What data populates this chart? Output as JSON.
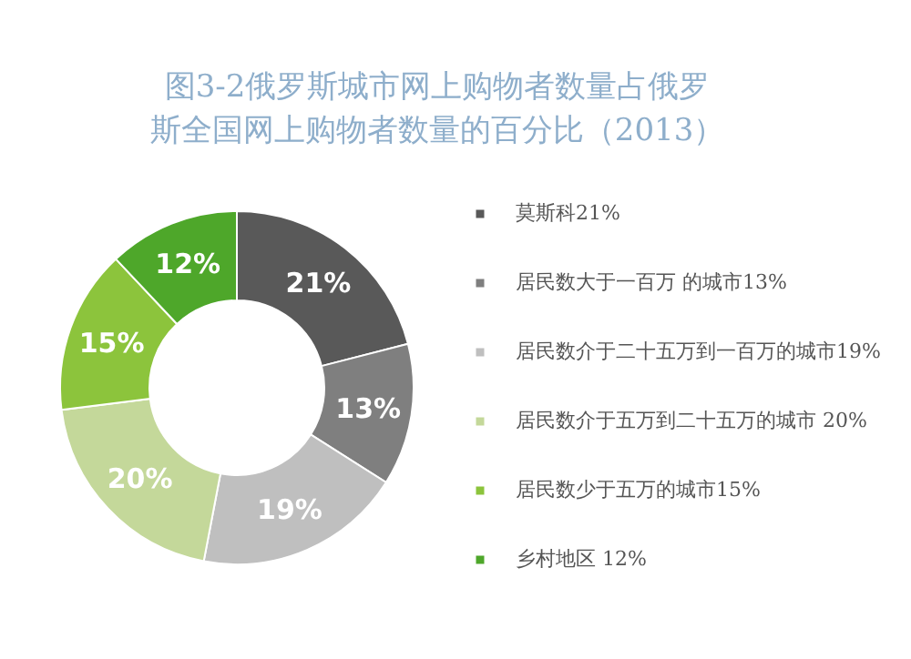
{
  "chart_data": {
    "type": "donut",
    "title": "图3-2俄罗斯城市网上购物者数量占俄罗斯全国网上购物者数量的百分比（2013）",
    "categories": [
      "莫斯科21%",
      "居民数大于一百万 的城市13%",
      "居民数介于二十五万到一百万的城市19%",
      "居民数介于五万到二十五万的城市 20%",
      "居民数少于五万的城市15%",
      "乡村地区 12%"
    ],
    "values": [
      21,
      13,
      19,
      20,
      15,
      12
    ],
    "colors": [
      "#595959",
      "#7f7f7f",
      "#bfbfbf",
      "#c4d89a",
      "#8cc43c",
      "#4ea72a"
    ],
    "value_labels": [
      "21%",
      "13%",
      "19%",
      "20%",
      "15%",
      "12%"
    ],
    "legend": "right"
  }
}
